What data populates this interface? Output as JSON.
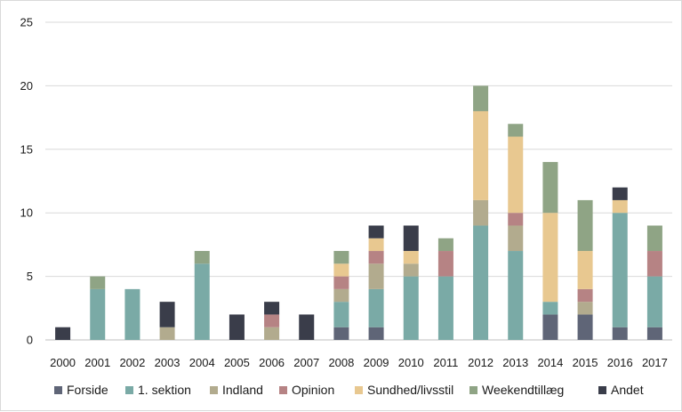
{
  "chart_data": {
    "type": "bar",
    "stacked": true,
    "title": "",
    "xlabel": "",
    "ylabel": "",
    "ylim": [
      0,
      25
    ],
    "yticks": [
      0,
      5,
      10,
      15,
      20,
      25
    ],
    "grid": "horizontal",
    "legend_position": "bottom",
    "categories": [
      "2000",
      "2001",
      "2002",
      "2003",
      "2004",
      "2005",
      "2006",
      "2007",
      "2008",
      "2009",
      "2010",
      "2011",
      "2012",
      "2013",
      "2014",
      "2015",
      "2016",
      "2017"
    ],
    "series": [
      {
        "name": "Forside",
        "color": "#5f6577",
        "values": [
          0,
          0,
          0,
          0,
          0,
          0,
          0,
          0,
          1,
          1,
          0,
          0,
          0,
          0,
          2,
          2,
          1,
          1
        ]
      },
      {
        "name": "1. sektion",
        "color": "#7aaaa6",
        "values": [
          0,
          4,
          4,
          0,
          6,
          0,
          0,
          0,
          2,
          3,
          5,
          5,
          9,
          7,
          1,
          0,
          9,
          4
        ]
      },
      {
        "name": "Indland",
        "color": "#b2ab8e",
        "values": [
          0,
          0,
          0,
          1,
          0,
          0,
          1,
          0,
          1,
          2,
          1,
          0,
          2,
          2,
          0,
          1,
          0,
          0
        ]
      },
      {
        "name": "Opinion",
        "color": "#b68384",
        "values": [
          0,
          0,
          0,
          0,
          0,
          0,
          1,
          0,
          1,
          1,
          0,
          2,
          0,
          1,
          0,
          1,
          0,
          2
        ]
      },
      {
        "name": "Sundhed/livsstil",
        "color": "#e8c890",
        "values": [
          0,
          0,
          0,
          0,
          0,
          0,
          0,
          0,
          1,
          1,
          1,
          0,
          7,
          6,
          7,
          3,
          1,
          0
        ]
      },
      {
        "name": "Weekendtillæg",
        "color": "#8fa485",
        "values": [
          0,
          1,
          0,
          0,
          1,
          0,
          0,
          0,
          1,
          0,
          0,
          1,
          2,
          1,
          4,
          4,
          0,
          2
        ]
      },
      {
        "name": "Andet",
        "color": "#3a3d4a",
        "values": [
          1,
          0,
          0,
          2,
          0,
          2,
          1,
          2,
          0,
          1,
          2,
          0,
          0,
          0,
          0,
          0,
          1,
          0
        ]
      }
    ]
  }
}
